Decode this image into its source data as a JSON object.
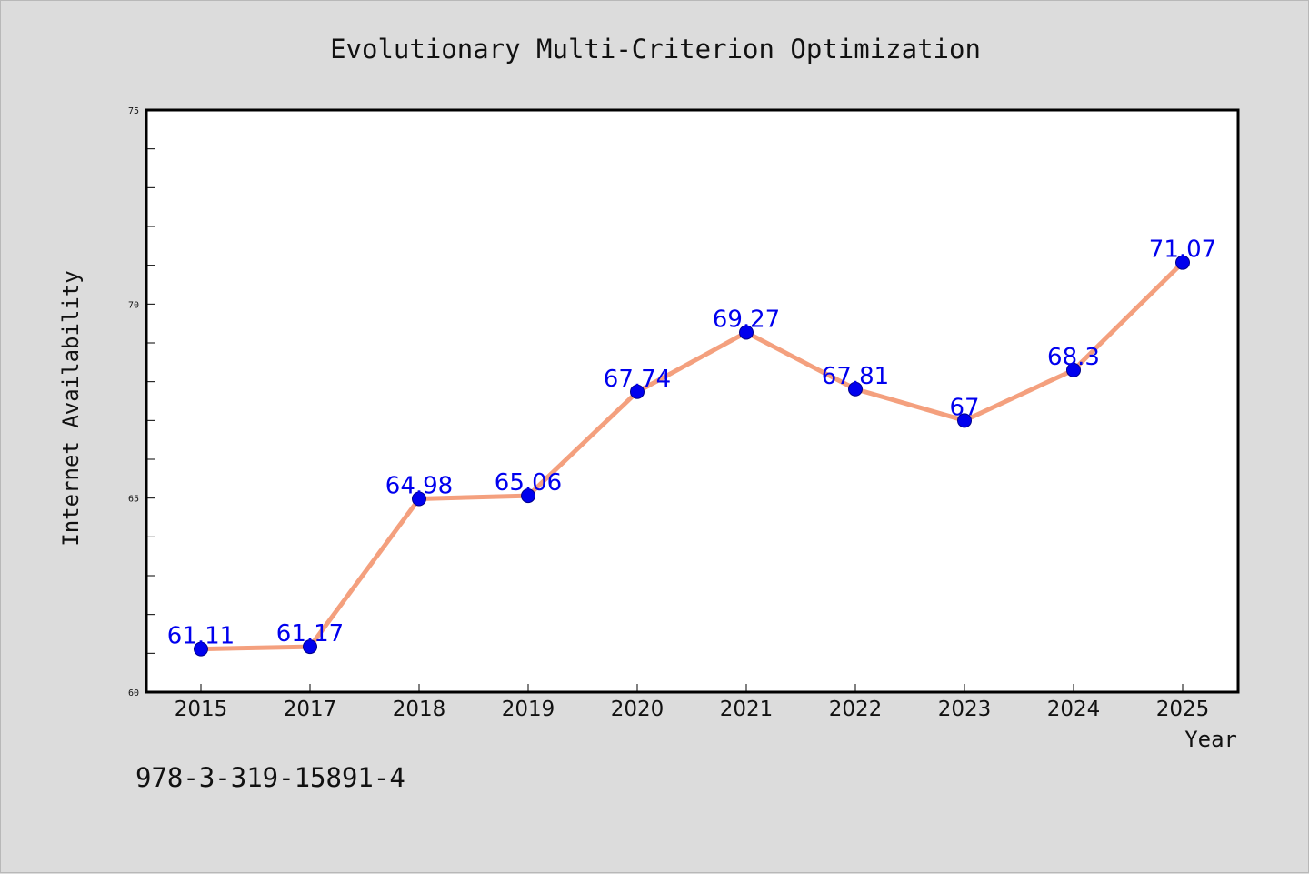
{
  "footnote": "978-3-319-15891-4",
  "colors": {
    "background": "#dcdcdc",
    "plot_background": "#ffffff",
    "line": "#f4a07e",
    "marker": "#0000ee",
    "data_label": "#0000ee"
  },
  "chart_data": {
    "type": "line",
    "title": "Evolutionary Multi-Criterion Optimization",
    "xlabel": "Year",
    "ylabel": "Internet Availability",
    "categories": [
      "2015",
      "2017",
      "2018",
      "2019",
      "2020",
      "2021",
      "2022",
      "2023",
      "2024",
      "2025"
    ],
    "series": [
      {
        "values": [
          61.11,
          61.17,
          64.98,
          65.06,
          67.74,
          69.27,
          67.81,
          67,
          68.3,
          71.07
        ],
        "labels": [
          "61.11",
          "61.17",
          "64.98",
          "65.06",
          "67.74",
          "69.27",
          "67.81",
          "67",
          "68.3",
          "71.07"
        ]
      }
    ],
    "ylim": [
      60,
      75
    ],
    "yticks": [
      60,
      65,
      70,
      75
    ],
    "ytick_labels": [
      "60",
      "65",
      "70",
      "75"
    ],
    "grid": false,
    "markers": true,
    "data_labels": true
  }
}
